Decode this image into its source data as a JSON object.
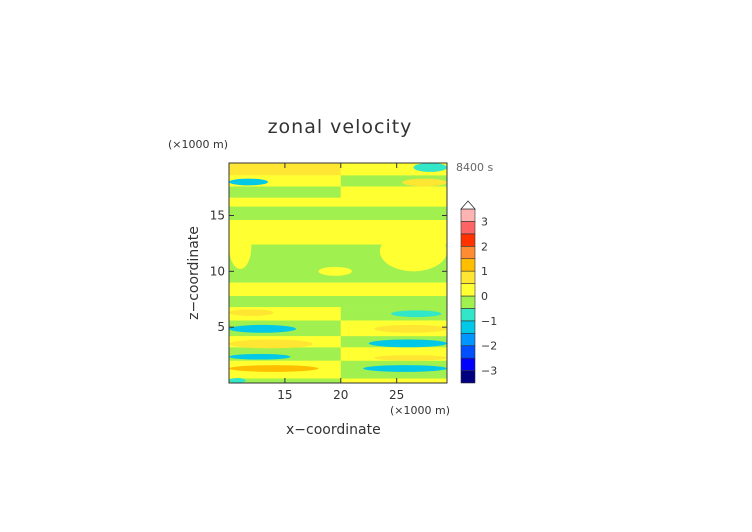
{
  "chart_data": {
    "type": "heatmap",
    "title": "zonal velocity",
    "time_label": "8400 s",
    "xlabel": "x−coordinate",
    "ylabel": "z−coordinate",
    "x_unit": "(×1000 m)",
    "y_unit": "(×1000 m)",
    "xlim": [
      10,
      29.5
    ],
    "ylim": [
      0,
      19.7
    ],
    "x_ticks": [
      15,
      20,
      25
    ],
    "y_ticks": [
      5,
      10,
      15
    ],
    "x_tick_labels": [
      "15",
      "20",
      "25"
    ],
    "y_tick_labels": [
      "5",
      "10",
      "15"
    ],
    "colorbar": {
      "levels": [
        -3.5,
        -3,
        -2.5,
        -2,
        -1.5,
        -1,
        -0.5,
        0,
        0.5,
        1,
        1.5,
        2,
        2.5,
        3,
        3.5
      ],
      "colors": [
        "#000080",
        "#0000ff",
        "#0050ff",
        "#0096ff",
        "#00c8e6",
        "#32e6c8",
        "#a0f050",
        "#ffff32",
        "#ffe632",
        "#ffbe00",
        "#ff8c32",
        "#ff3200",
        "#ff6464",
        "#ffb4b4"
      ],
      "extend": "max",
      "tick_values": [
        -3,
        -2,
        -1,
        0,
        1,
        2,
        3
      ],
      "tick_labels": [
        "−3",
        "−2",
        "−1",
        "0",
        "1",
        "2",
        "3"
      ]
    },
    "background_bands": [
      {
        "z": [
          0,
          0.4
        ],
        "value": -0.3,
        "x": [
          10,
          20
        ]
      },
      {
        "z": [
          0,
          0.4
        ],
        "value": 0.3,
        "x": [
          20,
          29.5
        ]
      },
      {
        "z": [
          0.4,
          2.0
        ],
        "value": 0.4,
        "x": [
          10,
          20
        ]
      },
      {
        "z": [
          0.4,
          2.0
        ],
        "value": -0.3,
        "x": [
          20,
          29.5
        ]
      },
      {
        "z": [
          2.0,
          3.2
        ],
        "value": -0.3,
        "x": [
          10,
          20
        ]
      },
      {
        "z": [
          2.0,
          3.2
        ],
        "value": 0.3,
        "x": [
          20,
          29.5
        ]
      },
      {
        "z": [
          3.2,
          4.2
        ],
        "value": 0.3,
        "x": [
          10,
          20
        ]
      },
      {
        "z": [
          3.2,
          4.2
        ],
        "value": -0.3,
        "x": [
          20,
          29.5
        ]
      },
      {
        "z": [
          4.2,
          5.6
        ],
        "value": -0.3,
        "x": [
          10,
          20
        ]
      },
      {
        "z": [
          4.2,
          5.6
        ],
        "value": 0.3,
        "x": [
          20,
          29.5
        ]
      },
      {
        "z": [
          5.6,
          6.8
        ],
        "value": 0.3,
        "x": [
          10,
          20
        ]
      },
      {
        "z": [
          5.6,
          6.8
        ],
        "value": -0.3,
        "x": [
          20,
          29.5
        ]
      },
      {
        "z": [
          6.8,
          7.8
        ],
        "value": -0.3,
        "x": [
          10,
          29.5
        ]
      },
      {
        "z": [
          7.8,
          9.0
        ],
        "value": 0.3,
        "x": [
          10,
          29.5
        ]
      },
      {
        "z": [
          9.0,
          12.4
        ],
        "value": -0.3,
        "x": [
          10,
          29.5
        ]
      },
      {
        "z": [
          12.4,
          14.6
        ],
        "value": 0.3,
        "x": [
          10,
          29.5
        ]
      },
      {
        "z": [
          14.6,
          15.8
        ],
        "value": -0.3,
        "x": [
          10,
          29.5
        ]
      },
      {
        "z": [
          15.8,
          16.6
        ],
        "value": 0.3,
        "x": [
          10,
          29.5
        ]
      },
      {
        "z": [
          16.6,
          17.6
        ],
        "value": -0.3,
        "x": [
          10,
          20
        ]
      },
      {
        "z": [
          16.6,
          17.6
        ],
        "value": 0.3,
        "x": [
          20,
          29.5
        ]
      },
      {
        "z": [
          17.6,
          18.6
        ],
        "value": 0.3,
        "x": [
          10,
          20
        ]
      },
      {
        "z": [
          17.6,
          18.6
        ],
        "value": -0.3,
        "x": [
          20,
          29.5
        ]
      },
      {
        "z": [
          18.6,
          19.7
        ],
        "value": 0.6,
        "x": [
          10,
          20
        ]
      },
      {
        "z": [
          18.6,
          19.7
        ],
        "value": 0.3,
        "x": [
          20,
          29.5
        ]
      }
    ],
    "features": [
      {
        "x": [
          10,
          12
        ],
        "z": [
          10.2,
          14.2
        ],
        "value": 0.3,
        "shape": "ellipse"
      },
      {
        "x": [
          23.5,
          29.5
        ],
        "z": [
          10.0,
          13.6
        ],
        "value": 0.3,
        "shape": "ellipse"
      },
      {
        "x": [
          18,
          21
        ],
        "z": [
          9.6,
          10.4
        ],
        "value": 0.3,
        "shape": "ellipse"
      },
      {
        "x": [
          10,
          13.5
        ],
        "z": [
          17.7,
          18.3
        ],
        "value": -1.2,
        "shape": "ellipse"
      },
      {
        "x": [
          25.5,
          29.5
        ],
        "z": [
          17.6,
          18.3
        ],
        "value": 0.8,
        "shape": "ellipse"
      },
      {
        "x": [
          10,
          14
        ],
        "z": [
          6.0,
          6.6
        ],
        "value": 0.6,
        "shape": "ellipse"
      },
      {
        "x": [
          24.5,
          29
        ],
        "z": [
          5.9,
          6.5
        ],
        "value": -1.0,
        "shape": "ellipse"
      },
      {
        "x": [
          10,
          16
        ],
        "z": [
          4.5,
          5.2
        ],
        "value": -1.2,
        "shape": "ellipse"
      },
      {
        "x": [
          23,
          29.5
        ],
        "z": [
          4.5,
          5.2
        ],
        "value": 0.6,
        "shape": "ellipse"
      },
      {
        "x": [
          10,
          17.5
        ],
        "z": [
          3.1,
          3.9
        ],
        "value": 0.8,
        "shape": "ellipse"
      },
      {
        "x": [
          22.5,
          29.5
        ],
        "z": [
          3.2,
          3.9
        ],
        "value": -1.2,
        "shape": "ellipse"
      },
      {
        "x": [
          10,
          15.5
        ],
        "z": [
          2.1,
          2.6
        ],
        "value": -1.3,
        "shape": "ellipse"
      },
      {
        "x": [
          23,
          29.5
        ],
        "z": [
          2.0,
          2.5
        ],
        "value": 0.8,
        "shape": "ellipse"
      },
      {
        "x": [
          10,
          18
        ],
        "z": [
          1.0,
          1.6
        ],
        "value": 1.2,
        "shape": "ellipse"
      },
      {
        "x": [
          22,
          29.5
        ],
        "z": [
          1.0,
          1.6
        ],
        "value": -1.3,
        "shape": "ellipse"
      },
      {
        "x": [
          10,
          11.5
        ],
        "z": [
          0,
          0.45
        ],
        "value": -1.0,
        "shape": "ellipse"
      },
      {
        "x": [
          26.5,
          29.5
        ],
        "z": [
          18.9,
          19.7
        ],
        "value": -1.0,
        "shape": "ellipse"
      }
    ]
  }
}
